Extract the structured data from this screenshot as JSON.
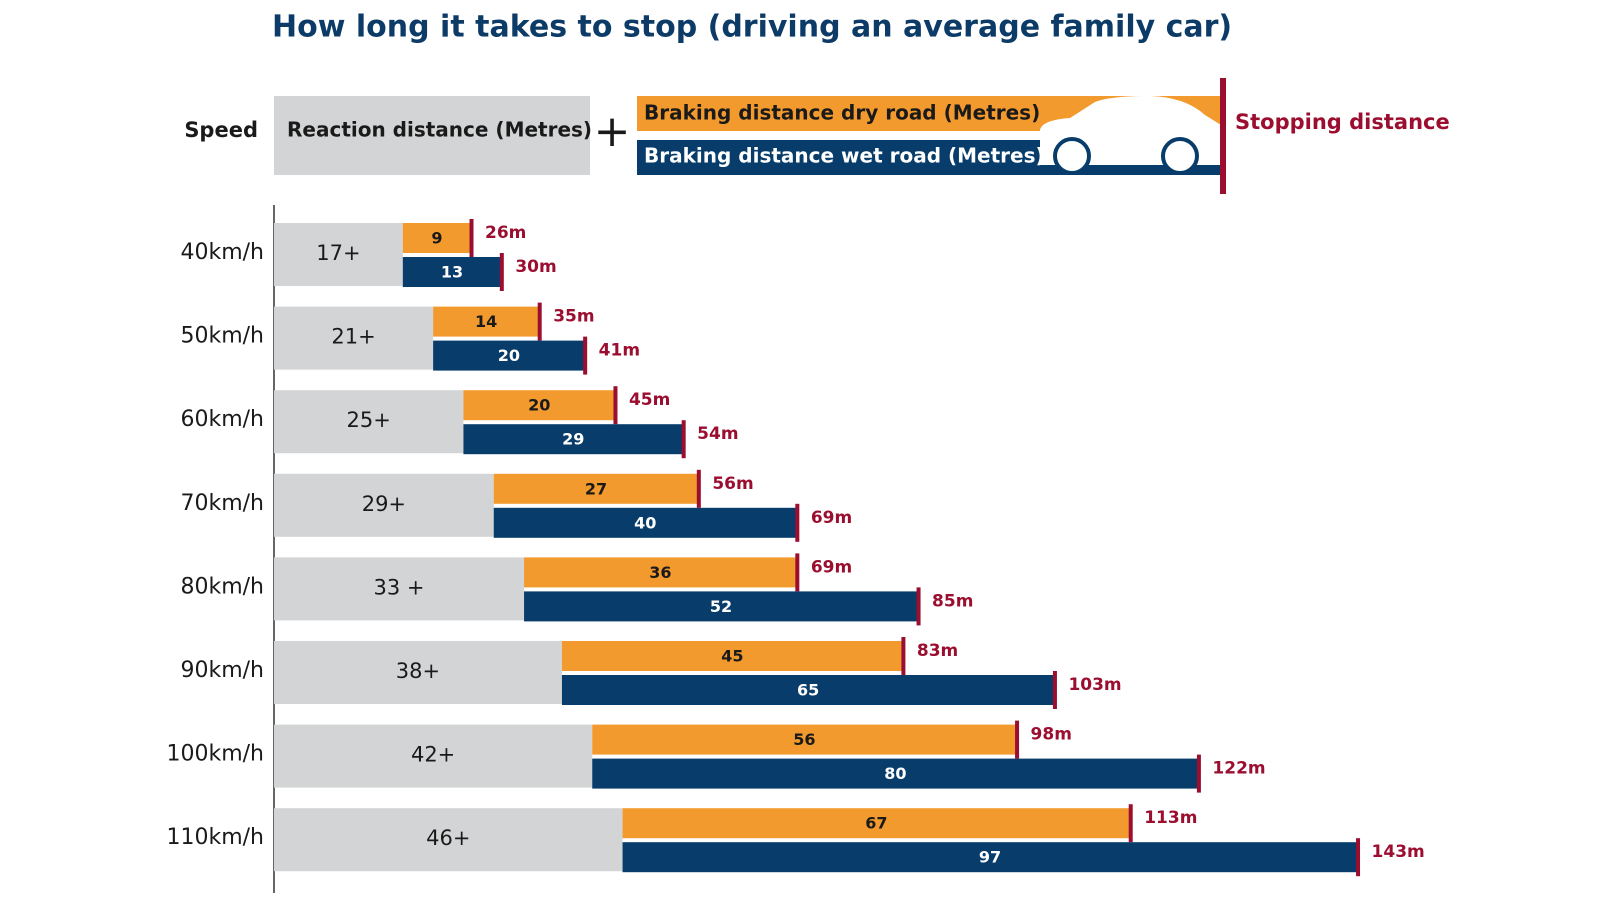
{
  "chart_data": {
    "type": "stacked_bar",
    "title": "How long it takes to stop (driving an average family car)",
    "category_header": "Speed",
    "categories": [
      "40km/h",
      "50km/h",
      "60km/h",
      "70km/h",
      "80km/h",
      "90km/h",
      "100km/h",
      "110km/h"
    ],
    "xlim": [
      0,
      175
    ],
    "reaction": {
      "name": "Reaction distance (Metres)",
      "color": "#d3d4d5",
      "values": [
        17,
        21,
        25,
        29,
        33,
        38,
        42,
        46
      ],
      "value_labels": [
        "17+",
        "21+",
        "25+",
        "29+",
        "33 +",
        "38+",
        "42+",
        "46+"
      ]
    },
    "series": [
      {
        "name": "Braking distance dry road (Metres)",
        "color": "#f39a2e",
        "text_color": "#1a1a1a",
        "values": [
          9,
          14,
          20,
          27,
          36,
          45,
          56,
          67
        ],
        "totals": [
          26,
          35,
          45,
          56,
          69,
          83,
          98,
          113
        ],
        "total_labels": [
          "26m",
          "35m",
          "45m",
          "56m",
          "69m",
          "83m",
          "98m",
          "113m"
        ]
      },
      {
        "name": "Braking distance wet road (Metres)",
        "color": "#083d6b",
        "text_color": "#ffffff",
        "values": [
          13,
          20,
          29,
          40,
          52,
          65,
          80,
          97
        ],
        "totals": [
          30,
          41,
          54,
          69,
          85,
          103,
          122,
          143
        ],
        "total_labels": [
          "30m",
          "41m",
          "54m",
          "69m",
          "85m",
          "103m",
          "122m",
          "143m"
        ]
      }
    ],
    "stopping": {
      "name": "Stopping distance",
      "color": "#9b0e30"
    }
  }
}
